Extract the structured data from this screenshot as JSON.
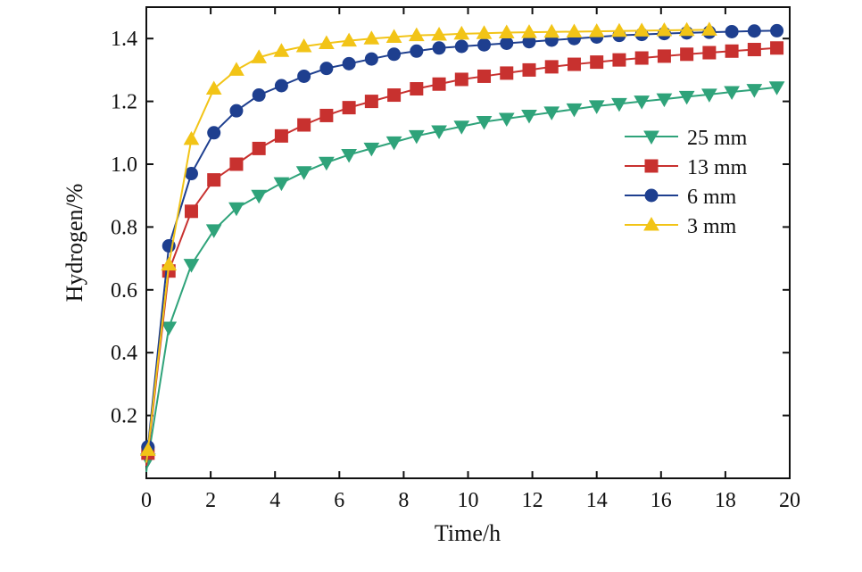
{
  "chart_data": {
    "type": "line",
    "title": "",
    "xlabel": "Time/h",
    "ylabel": "Hydrogen/%",
    "xlim": [
      0,
      20
    ],
    "ylim": [
      0,
      1.5
    ],
    "x_ticks": [
      0,
      2,
      4,
      6,
      8,
      10,
      12,
      14,
      16,
      18,
      20
    ],
    "x_tick_labels": [
      "0",
      "2",
      "4",
      "6",
      "8",
      "10",
      "12",
      "14",
      "16",
      "18",
      "20"
    ],
    "y_ticks": [
      0.2,
      0.4,
      0.6,
      0.8,
      1.0,
      1.2,
      1.4
    ],
    "y_tick_labels": [
      "0.2",
      "0.4",
      "0.6",
      "0.8",
      "1.0",
      "1.2",
      "1.4"
    ],
    "grid": false,
    "legend_position": "right",
    "series": [
      {
        "name": "25 mm",
        "color": "#2fa37a",
        "marker": "triangle-down",
        "x": [
          0,
          0.05,
          0.7,
          1.4,
          2.1,
          2.8,
          3.5,
          4.2,
          4.9,
          5.6,
          6.3,
          7.0,
          7.7,
          8.4,
          9.1,
          9.8,
          10.5,
          11.2,
          11.9,
          12.6,
          13.3,
          14.0,
          14.7,
          15.4,
          16.1,
          16.8,
          17.5,
          18.2,
          18.9,
          19.6
        ],
        "y": [
          0.02,
          0.06,
          0.48,
          0.68,
          0.79,
          0.86,
          0.9,
          0.94,
          0.975,
          1.005,
          1.03,
          1.05,
          1.07,
          1.09,
          1.105,
          1.12,
          1.135,
          1.145,
          1.155,
          1.165,
          1.175,
          1.185,
          1.192,
          1.2,
          1.207,
          1.215,
          1.222,
          1.23,
          1.237,
          1.245
        ]
      },
      {
        "name": "13 mm",
        "color": "#c8312f",
        "marker": "square",
        "x": [
          0,
          0.05,
          0.7,
          1.4,
          2.1,
          2.8,
          3.5,
          4.2,
          4.9,
          5.6,
          6.3,
          7.0,
          7.7,
          8.4,
          9.1,
          9.8,
          10.5,
          11.2,
          11.9,
          12.6,
          13.3,
          14.0,
          14.7,
          15.4,
          16.1,
          16.8,
          17.5,
          18.2,
          18.9,
          19.6
        ],
        "y": [
          0.04,
          0.08,
          0.66,
          0.85,
          0.95,
          1.0,
          1.05,
          1.09,
          1.125,
          1.155,
          1.18,
          1.2,
          1.22,
          1.24,
          1.255,
          1.27,
          1.28,
          1.29,
          1.3,
          1.31,
          1.318,
          1.325,
          1.332,
          1.338,
          1.344,
          1.35,
          1.355,
          1.36,
          1.365,
          1.37
        ]
      },
      {
        "name": "6 mm",
        "color": "#1e3f8f",
        "marker": "circle",
        "x": [
          0,
          0.05,
          0.7,
          1.4,
          2.1,
          2.8,
          3.5,
          4.2,
          4.9,
          5.6,
          6.3,
          7.0,
          7.7,
          8.4,
          9.1,
          9.8,
          10.5,
          11.2,
          11.9,
          12.6,
          13.3,
          14.0,
          14.7,
          15.4,
          16.1,
          16.8,
          17.5,
          18.2,
          18.9,
          19.6
        ],
        "y": [
          0.06,
          0.1,
          0.74,
          0.97,
          1.1,
          1.17,
          1.22,
          1.25,
          1.28,
          1.305,
          1.32,
          1.335,
          1.35,
          1.36,
          1.37,
          1.375,
          1.38,
          1.385,
          1.39,
          1.395,
          1.4,
          1.405,
          1.41,
          1.413,
          1.416,
          1.418,
          1.42,
          1.422,
          1.424,
          1.425
        ]
      },
      {
        "name": "3 mm",
        "color": "#f2c417",
        "marker": "triangle-up",
        "x": [
          0,
          0.05,
          0.7,
          1.4,
          2.1,
          2.8,
          3.5,
          4.2,
          4.9,
          5.6,
          6.3,
          7.0,
          7.7,
          8.4,
          9.1,
          9.8,
          10.5,
          11.2,
          11.9,
          12.6,
          13.3,
          14.0,
          14.7,
          15.4,
          16.1,
          16.8,
          17.5
        ],
        "y": [
          0.05,
          0.09,
          0.68,
          1.08,
          1.24,
          1.3,
          1.34,
          1.36,
          1.375,
          1.385,
          1.393,
          1.4,
          1.405,
          1.41,
          1.412,
          1.415,
          1.417,
          1.419,
          1.42,
          1.421,
          1.422,
          1.423,
          1.424,
          1.425,
          1.426,
          1.427,
          1.428
        ]
      }
    ]
  }
}
